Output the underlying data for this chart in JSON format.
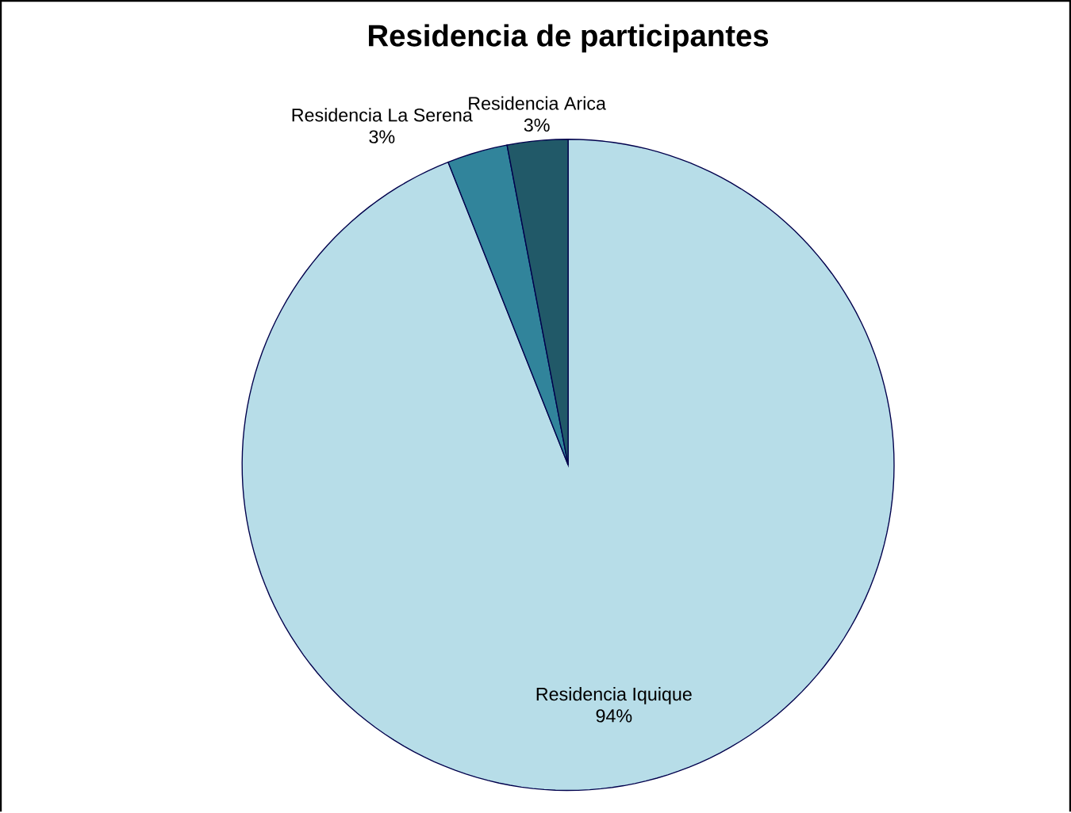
{
  "chart_data": {
    "type": "pie",
    "title": "Residencia de participantes",
    "categories": [
      "Residencia Iquique",
      "Residencia  La Serena",
      "Residencia Arica"
    ],
    "values": [
      94,
      3,
      3
    ],
    "value_labels": [
      "94%",
      "3%",
      "3%"
    ],
    "colors": [
      "#b7dde8",
      "#31849b",
      "#215968"
    ]
  }
}
